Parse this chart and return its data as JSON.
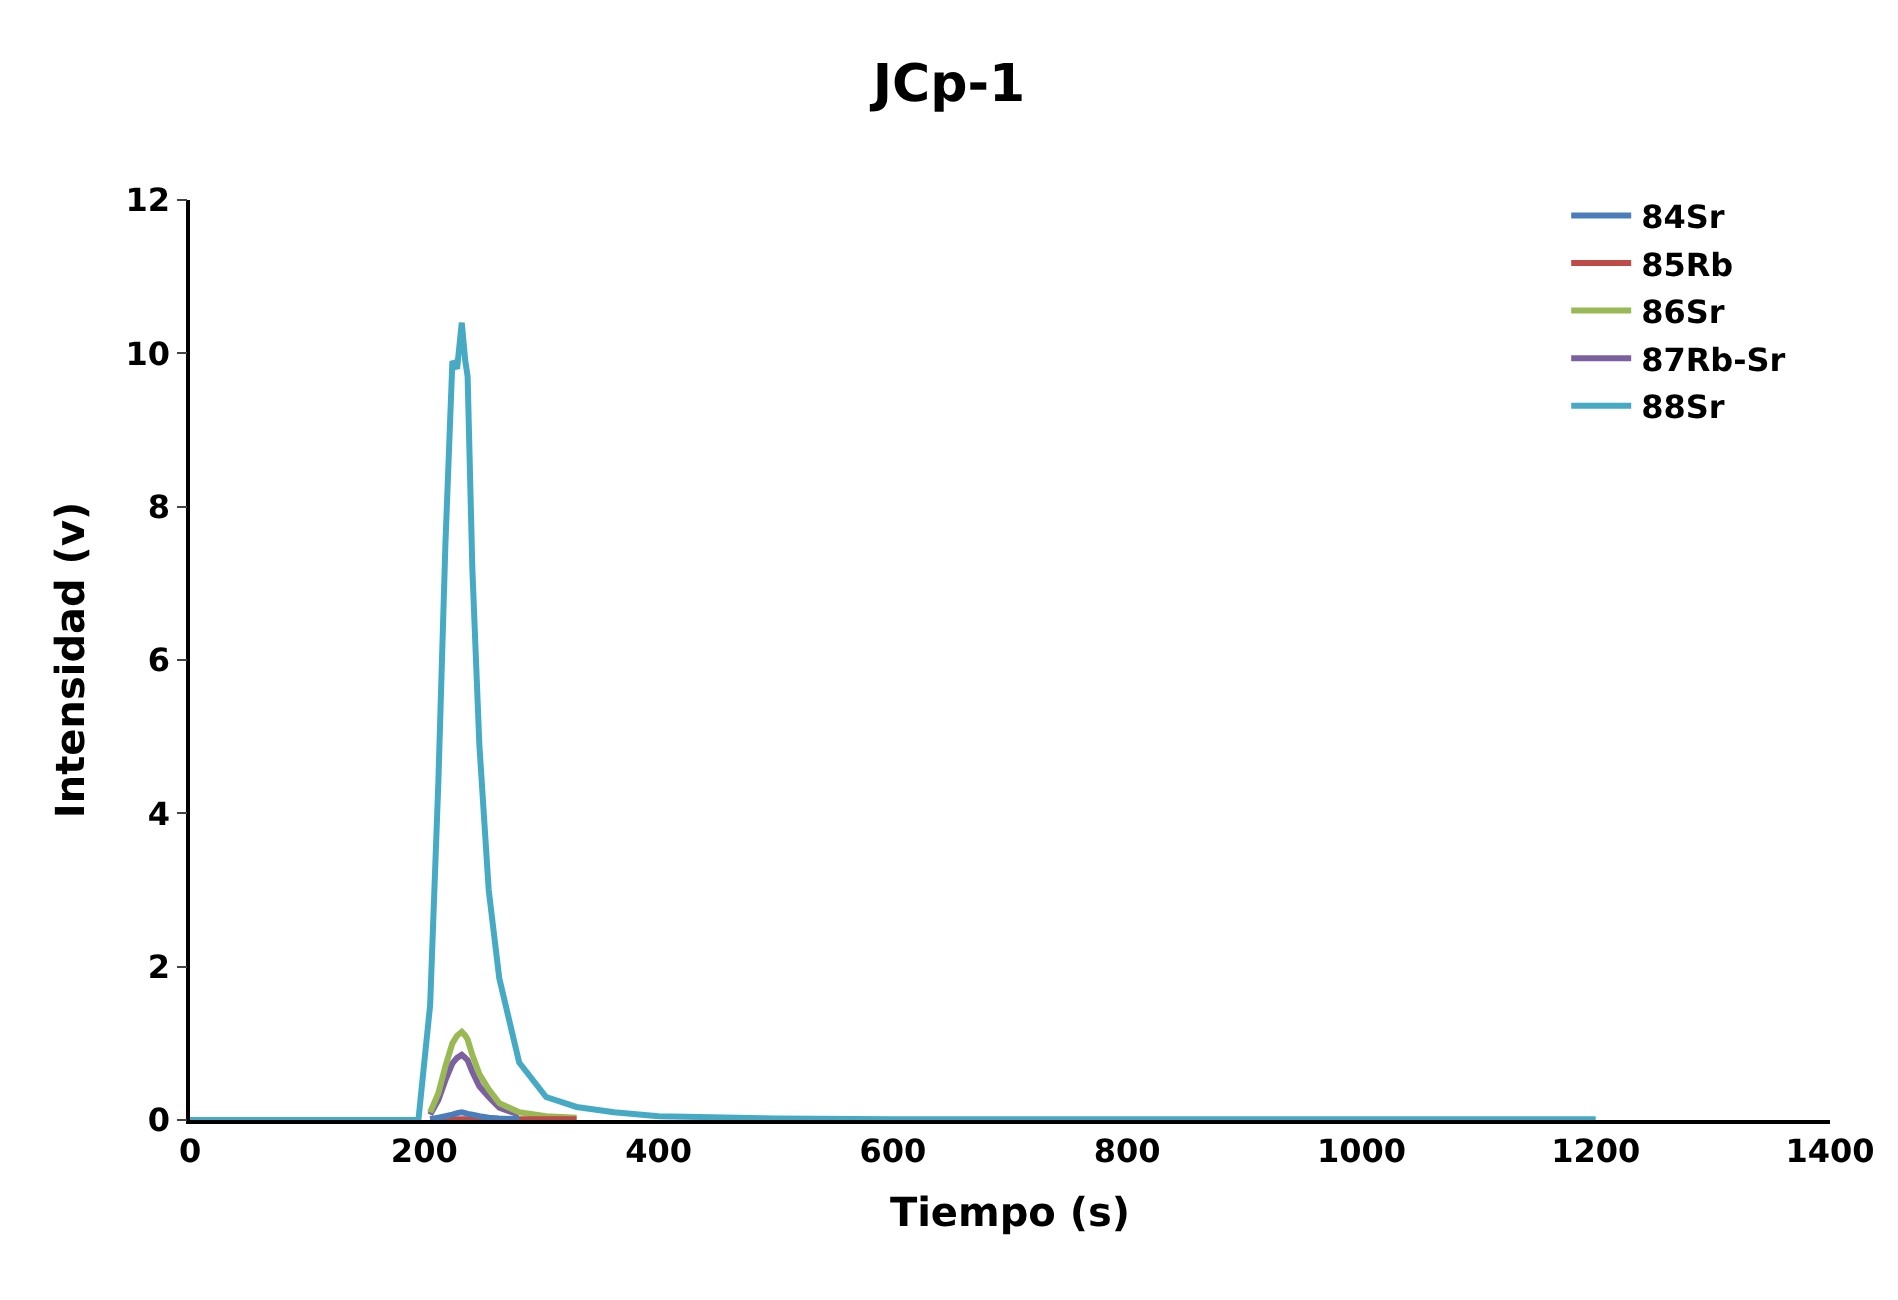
{
  "chart_data": {
    "type": "line",
    "title": "JCp-1",
    "xlabel": "Tiempo (s)",
    "ylabel": "Intensidad (v)",
    "x": [
      0,
      195,
      205,
      212,
      218,
      224,
      228,
      232,
      235,
      237,
      241,
      247,
      255,
      264,
      281,
      304,
      330,
      362,
      400,
      500,
      600,
      800,
      1000,
      1200
    ],
    "series": [
      {
        "name": "84Sr",
        "color": "#4a7ebb",
        "values": [
          null,
          null,
          0.01,
          0.03,
          0.05,
          0.07,
          0.09,
          0.1,
          0.09,
          0.08,
          0.07,
          0.05,
          0.03,
          0.02,
          0.01,
          null,
          null,
          null,
          null,
          null,
          null,
          null,
          null,
          null
        ]
      },
      {
        "name": "85Rb",
        "color": "#be4b48",
        "values": [
          null,
          null,
          0.01,
          0.01,
          0.01,
          0.01,
          0.01,
          0.01,
          0.01,
          0.01,
          0.01,
          0.01,
          0.01,
          0.01,
          0.01,
          0.01,
          0.01,
          null,
          null,
          null,
          null,
          null,
          null,
          null
        ]
      },
      {
        "name": "86Sr",
        "color": "#98b954",
        "values": [
          null,
          null,
          0.1,
          0.35,
          0.7,
          1.0,
          1.1,
          1.15,
          1.1,
          1.05,
          0.85,
          0.6,
          0.4,
          0.22,
          0.1,
          0.05,
          0.03,
          null,
          null,
          null,
          null,
          null,
          null,
          null
        ]
      },
      {
        "name": "87Rb-Sr",
        "color": "#7d60a0",
        "values": [
          null,
          null,
          0.07,
          0.26,
          0.52,
          0.74,
          0.81,
          0.85,
          0.81,
          0.78,
          0.63,
          0.44,
          0.3,
          0.16,
          0.07,
          null,
          null,
          null,
          null,
          null,
          null,
          null,
          null,
          null
        ]
      },
      {
        "name": "88Sr",
        "color": "#46aac5",
        "values": [
          0,
          0,
          1.5,
          4.4,
          7.5,
          9.9,
          9.8,
          10.4,
          9.9,
          9.7,
          7.2,
          4.9,
          3.0,
          1.85,
          0.75,
          0.3,
          0.17,
          0.1,
          0.05,
          0.02,
          0.01,
          0.01,
          0.01,
          0.01
        ]
      }
    ],
    "xlim": [
      0,
      1400
    ],
    "xticks": [
      0,
      200,
      400,
      600,
      800,
      1000,
      1200,
      1400
    ],
    "ylim": [
      0,
      12
    ],
    "yticks": [
      0,
      2,
      4,
      6,
      8,
      10,
      12
    ],
    "grid": false,
    "legend": "top right",
    "marker": "none",
    "line_style": "solid"
  }
}
